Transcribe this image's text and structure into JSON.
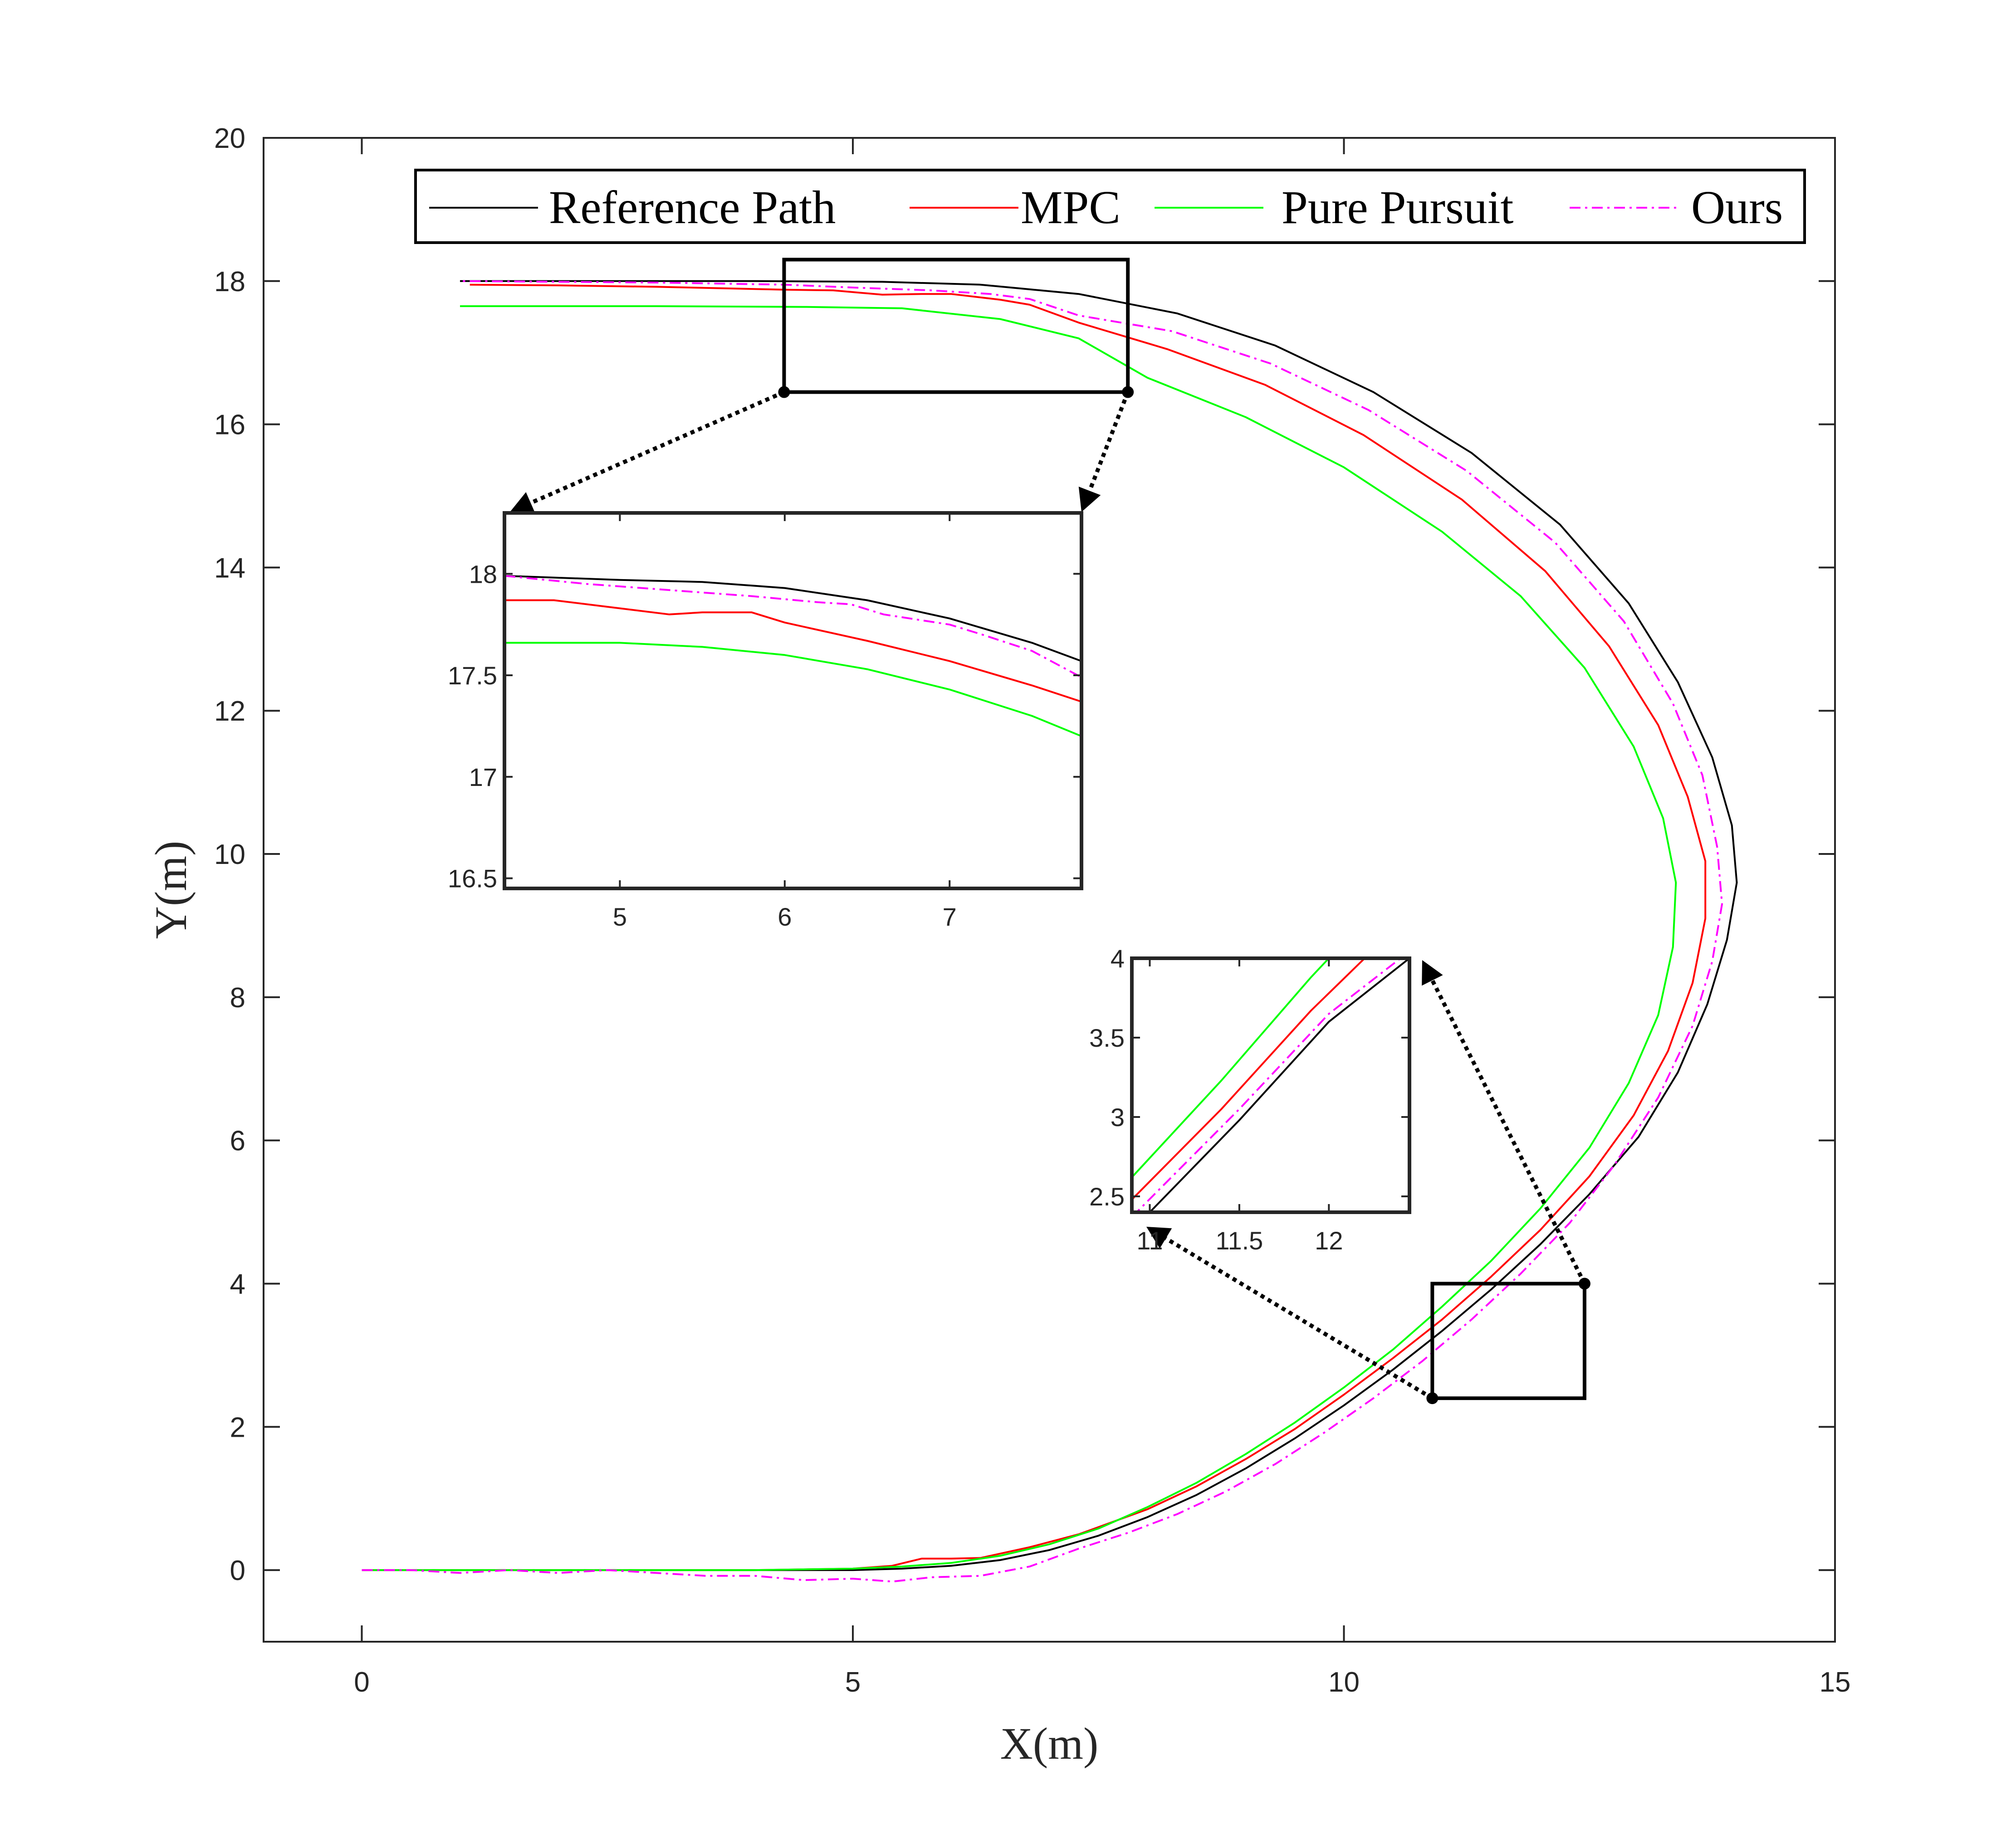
{
  "chart_data": {
    "type": "line",
    "title": "",
    "xlabel": "X(m)",
    "ylabel": "Y(m)",
    "xlim": [
      -1,
      15
    ],
    "ylim": [
      -1,
      20
    ],
    "xticks": [
      0,
      5,
      10,
      15
    ],
    "yticks": [
      0,
      2,
      4,
      6,
      8,
      10,
      12,
      14,
      16,
      18,
      20
    ],
    "grid": false,
    "legend": {
      "placement": "top",
      "orientation": "horizontal"
    },
    "series": [
      {
        "name": "Reference Path",
        "color": "#000000",
        "style": "solid",
        "points": [
          [
            0,
            0
          ],
          [
            1,
            0
          ],
          [
            2,
            0
          ],
          [
            3,
            0
          ],
          [
            4,
            0
          ],
          [
            5,
            0
          ],
          [
            5.5,
            0.02
          ],
          [
            6,
            0.06
          ],
          [
            6.5,
            0.14
          ],
          [
            7,
            0.28
          ],
          [
            7.5,
            0.48
          ],
          [
            8,
            0.74
          ],
          [
            8.5,
            1.05
          ],
          [
            9,
            1.42
          ],
          [
            9.5,
            1.84
          ],
          [
            10,
            2.3
          ],
          [
            10.5,
            2.8
          ],
          [
            11,
            3.34
          ],
          [
            11.5,
            3.92
          ],
          [
            12,
            4.55
          ],
          [
            12.5,
            5.25
          ],
          [
            13,
            6.05
          ],
          [
            13.4,
            6.95
          ],
          [
            13.7,
            7.9
          ],
          [
            13.9,
            8.8
          ],
          [
            14,
            9.6
          ],
          [
            13.95,
            10.4
          ],
          [
            13.75,
            11.35
          ],
          [
            13.4,
            12.4
          ],
          [
            12.9,
            13.5
          ],
          [
            12.2,
            14.6
          ],
          [
            11.3,
            15.6
          ],
          [
            10.3,
            16.45
          ],
          [
            9.3,
            17.1
          ],
          [
            8.3,
            17.55
          ],
          [
            7.3,
            17.82
          ],
          [
            6.3,
            17.95
          ],
          [
            5.3,
            17.99
          ],
          [
            4,
            18
          ],
          [
            3,
            18
          ],
          [
            2,
            18
          ],
          [
            1,
            18
          ]
        ]
      },
      {
        "name": "MPC",
        "color": "#ff0000",
        "style": "solid",
        "points": [
          [
            0,
            0
          ],
          [
            1,
            0
          ],
          [
            2,
            0
          ],
          [
            3,
            0
          ],
          [
            4,
            0
          ],
          [
            5,
            0.02
          ],
          [
            5.4,
            0.06
          ],
          [
            5.7,
            0.16
          ],
          [
            6,
            0.16
          ],
          [
            6.3,
            0.17
          ],
          [
            6.8,
            0.32
          ],
          [
            7.3,
            0.5
          ],
          [
            8,
            0.85
          ],
          [
            8.5,
            1.17
          ],
          [
            9,
            1.55
          ],
          [
            9.5,
            1.97
          ],
          [
            10,
            2.45
          ],
          [
            10.5,
            2.96
          ],
          [
            11,
            3.5
          ],
          [
            11.5,
            4.1
          ],
          [
            12,
            4.75
          ],
          [
            12.5,
            5.5
          ],
          [
            12.95,
            6.35
          ],
          [
            13.3,
            7.25
          ],
          [
            13.55,
            8.2
          ],
          [
            13.68,
            9.1
          ],
          [
            13.68,
            9.9
          ],
          [
            13.5,
            10.8
          ],
          [
            13.2,
            11.8
          ],
          [
            12.7,
            12.9
          ],
          [
            12.05,
            13.95
          ],
          [
            11.2,
            14.95
          ],
          [
            10.2,
            15.85
          ],
          [
            9.2,
            16.55
          ],
          [
            8.2,
            17.05
          ],
          [
            7.3,
            17.42
          ],
          [
            6.8,
            17.67
          ],
          [
            6.5,
            17.74
          ],
          [
            6,
            17.82
          ],
          [
            5.7,
            17.82
          ],
          [
            5.3,
            17.81
          ],
          [
            4.8,
            17.87
          ],
          [
            4.3,
            17.88
          ],
          [
            3,
            17.92
          ],
          [
            2,
            17.94
          ],
          [
            1.1,
            17.95
          ]
        ]
      },
      {
        "name": "Pure Pursuit",
        "color": "#00ff00",
        "style": "solid",
        "points": [
          [
            0,
            0
          ],
          [
            1,
            0
          ],
          [
            2,
            0
          ],
          [
            3,
            0
          ],
          [
            4,
            0
          ],
          [
            5,
            0.02
          ],
          [
            5.5,
            0.05
          ],
          [
            6,
            0.1
          ],
          [
            6.5,
            0.2
          ],
          [
            7,
            0.36
          ],
          [
            7.5,
            0.58
          ],
          [
            8,
            0.88
          ],
          [
            8.5,
            1.22
          ],
          [
            9,
            1.62
          ],
          [
            9.5,
            2.06
          ],
          [
            10,
            2.55
          ],
          [
            10.5,
            3.08
          ],
          [
            11,
            3.68
          ],
          [
            11.5,
            4.32
          ],
          [
            12,
            5.05
          ],
          [
            12.5,
            5.9
          ],
          [
            12.9,
            6.8
          ],
          [
            13.2,
            7.75
          ],
          [
            13.35,
            8.7
          ],
          [
            13.38,
            9.6
          ],
          [
            13.25,
            10.5
          ],
          [
            12.95,
            11.5
          ],
          [
            12.45,
            12.6
          ],
          [
            11.8,
            13.6
          ],
          [
            11,
            14.5
          ],
          [
            10,
            15.4
          ],
          [
            9,
            16.1
          ],
          [
            8,
            16.65
          ],
          [
            7.3,
            17.2
          ],
          [
            6.5,
            17.47
          ],
          [
            5.5,
            17.62
          ],
          [
            4.5,
            17.64
          ],
          [
            3,
            17.65
          ],
          [
            1,
            17.65
          ]
        ]
      },
      {
        "name": "Ours",
        "color": "#ff00ff",
        "style": "dashdot",
        "points": [
          [
            0,
            0
          ],
          [
            0.5,
            0
          ],
          [
            1,
            -0.04
          ],
          [
            1.5,
            0
          ],
          [
            2,
            -0.04
          ],
          [
            2.5,
            0
          ],
          [
            3,
            -0.04
          ],
          [
            3.5,
            -0.08
          ],
          [
            4,
            -0.08
          ],
          [
            4.5,
            -0.14
          ],
          [
            5,
            -0.12
          ],
          [
            5.4,
            -0.16
          ],
          [
            5.8,
            -0.1
          ],
          [
            6.3,
            -0.08
          ],
          [
            6.8,
            0.05
          ],
          [
            7.3,
            0.3
          ],
          [
            7.8,
            0.52
          ],
          [
            8.3,
            0.78
          ],
          [
            8.8,
            1.1
          ],
          [
            9.3,
            1.48
          ],
          [
            9.8,
            1.92
          ],
          [
            10.3,
            2.4
          ],
          [
            10.8,
            2.92
          ],
          [
            11.3,
            3.5
          ],
          [
            11.8,
            4.14
          ],
          [
            12.3,
            4.85
          ],
          [
            12.75,
            5.65
          ],
          [
            13.2,
            6.6
          ],
          [
            13.55,
            7.6
          ],
          [
            13.75,
            8.5
          ],
          [
            13.85,
            9.3
          ],
          [
            13.8,
            10.1
          ],
          [
            13.65,
            11.1
          ],
          [
            13.35,
            12.1
          ],
          [
            12.85,
            13.25
          ],
          [
            12.15,
            14.35
          ],
          [
            11.25,
            15.35
          ],
          [
            10.25,
            16.2
          ],
          [
            9.25,
            16.85
          ],
          [
            8.25,
            17.3
          ],
          [
            7.3,
            17.52
          ],
          [
            6.8,
            17.75
          ],
          [
            6.4,
            17.82
          ],
          [
            5.8,
            17.87
          ],
          [
            5,
            17.91
          ],
          [
            4.3,
            17.95
          ],
          [
            3,
            17.98
          ],
          [
            2,
            17.99
          ],
          [
            1,
            18
          ]
        ]
      }
    ],
    "zoom_insets": [
      {
        "source_box": {
          "x": [
            4.3,
            7.8
          ],
          "y": [
            16.45,
            18.3
          ]
        },
        "xlim": [
          4.3,
          7.8
        ],
        "ylim": [
          16.45,
          18.3
        ],
        "xticks": [
          5,
          6,
          7
        ],
        "yticks": [
          16.5,
          17,
          17.5,
          18
        ],
        "yticklabels": [
          "16.5",
          "17",
          "17.5",
          "18"
        ],
        "series": {
          "Reference Path": [
            [
              4.3,
              17.99
            ],
            [
              5,
              17.97
            ],
            [
              5.5,
              17.96
            ],
            [
              6,
              17.93
            ],
            [
              6.5,
              17.87
            ],
            [
              7,
              17.78
            ],
            [
              7.5,
              17.66
            ],
            [
              7.8,
              17.57
            ]
          ],
          "MPC": [
            [
              4.3,
              17.87
            ],
            [
              4.6,
              17.87
            ],
            [
              5,
              17.83
            ],
            [
              5.3,
              17.8
            ],
            [
              5.5,
              17.81
            ],
            [
              5.8,
              17.81
            ],
            [
              6,
              17.76
            ],
            [
              6.5,
              17.67
            ],
            [
              7,
              17.57
            ],
            [
              7.5,
              17.45
            ],
            [
              7.8,
              17.37
            ]
          ],
          "Pure Pursuit": [
            [
              4.3,
              17.66
            ],
            [
              5,
              17.66
            ],
            [
              5.5,
              17.64
            ],
            [
              6,
              17.6
            ],
            [
              6.5,
              17.53
            ],
            [
              7,
              17.43
            ],
            [
              7.5,
              17.3
            ],
            [
              7.8,
              17.2
            ]
          ],
          "Ours": [
            [
              4.3,
              17.99
            ],
            [
              4.8,
              17.95
            ],
            [
              5.3,
              17.92
            ],
            [
              5.8,
              17.89
            ],
            [
              6.2,
              17.86
            ],
            [
              6.4,
              17.85
            ],
            [
              6.6,
              17.8
            ],
            [
              7,
              17.75
            ],
            [
              7.2,
              17.7
            ],
            [
              7.5,
              17.62
            ],
            [
              7.8,
              17.49
            ]
          ]
        }
      },
      {
        "source_box": {
          "x": [
            10.9,
            12.45
          ],
          "y": [
            2.4,
            4
          ]
        },
        "xlim": [
          10.9,
          12.45
        ],
        "ylim": [
          2.4,
          4
        ],
        "xticks": [
          11,
          11.5,
          12
        ],
        "yticks": [
          2.5,
          3,
          3.5,
          4
        ],
        "yticklabels": [
          "2.5",
          "3",
          "3.5",
          "4"
        ],
        "series": {
          "Reference Path": [
            [
              11.0,
              2.4
            ],
            [
              11.5,
              2.98
            ],
            [
              12.0,
              3.6
            ],
            [
              12.45,
              4.0
            ]
          ],
          "MPC": [
            [
              10.9,
              2.48
            ],
            [
              11.4,
              3.05
            ],
            [
              11.9,
              3.67
            ],
            [
              12.2,
              4.0
            ]
          ],
          "Pure Pursuit": [
            [
              10.9,
              2.62
            ],
            [
              11.4,
              3.23
            ],
            [
              11.9,
              3.88
            ],
            [
              12.0,
              4.0
            ]
          ],
          "Ours": [
            [
              10.9,
              2.37
            ],
            [
              11.5,
              3.05
            ],
            [
              12.0,
              3.65
            ],
            [
              12.4,
              4.0
            ]
          ]
        }
      }
    ]
  }
}
